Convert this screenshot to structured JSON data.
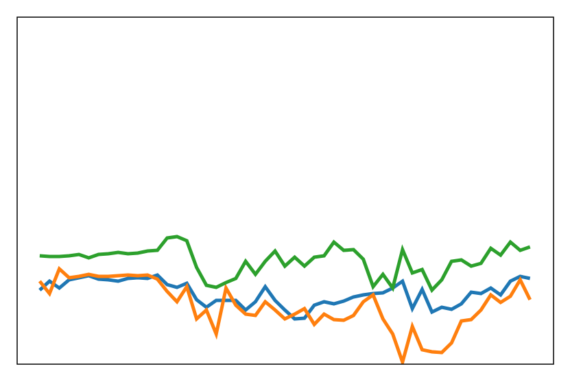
{
  "chart_data": {
    "type": "line",
    "x": [
      0,
      1,
      2,
      3,
      4,
      5,
      6,
      7,
      8,
      9,
      10,
      11,
      12,
      13,
      14,
      15,
      16,
      17,
      18,
      19,
      20,
      21,
      22,
      23,
      24,
      25,
      26,
      27,
      28,
      29,
      30,
      31,
      32,
      33,
      34,
      35,
      36,
      37,
      38,
      39,
      40,
      41,
      42,
      43,
      44,
      45,
      46,
      47,
      48,
      49,
      50
    ],
    "xlim": [
      -2.3,
      52.4
    ],
    "ylim": [
      0,
      506
    ],
    "series": [
      {
        "color": "#1f77b4",
        "values": [
          108,
          121,
          111,
          123,
          126,
          129,
          124,
          123,
          121,
          125,
          126,
          125,
          130,
          116,
          112,
          118,
          94,
          83,
          93,
          93,
          93,
          79,
          91,
          113,
          93,
          79,
          66,
          67,
          86,
          91,
          88,
          92,
          98,
          101,
          103,
          104,
          111,
          121,
          81,
          109,
          76,
          83,
          80,
          88,
          105,
          103,
          111,
          101,
          121,
          128,
          125
        ]
      },
      {
        "color": "#ff7f0e",
        "values": [
          121,
          103,
          139,
          126,
          128,
          131,
          128,
          128,
          129,
          130,
          129,
          130,
          124,
          106,
          91,
          113,
          66,
          79,
          44,
          111,
          86,
          73,
          71,
          91,
          79,
          66,
          73,
          81,
          58,
          73,
          65,
          64,
          71,
          91,
          101,
          66,
          44,
          3,
          55,
          21,
          18,
          17,
          31,
          63,
          65,
          79,
          101,
          90,
          99,
          123,
          94
        ]
      },
      {
        "color": "#2ca02c",
        "values": [
          158,
          157,
          157,
          158,
          160,
          155,
          160,
          161,
          163,
          161,
          162,
          165,
          166,
          184,
          186,
          180,
          141,
          115,
          112,
          119,
          125,
          150,
          131,
          150,
          165,
          143,
          156,
          143,
          156,
          158,
          178,
          166,
          167,
          153,
          113,
          131,
          111,
          167,
          133,
          138,
          108,
          123,
          150,
          152,
          143,
          147,
          169,
          159,
          178,
          166,
          171
        ]
      }
    ]
  }
}
